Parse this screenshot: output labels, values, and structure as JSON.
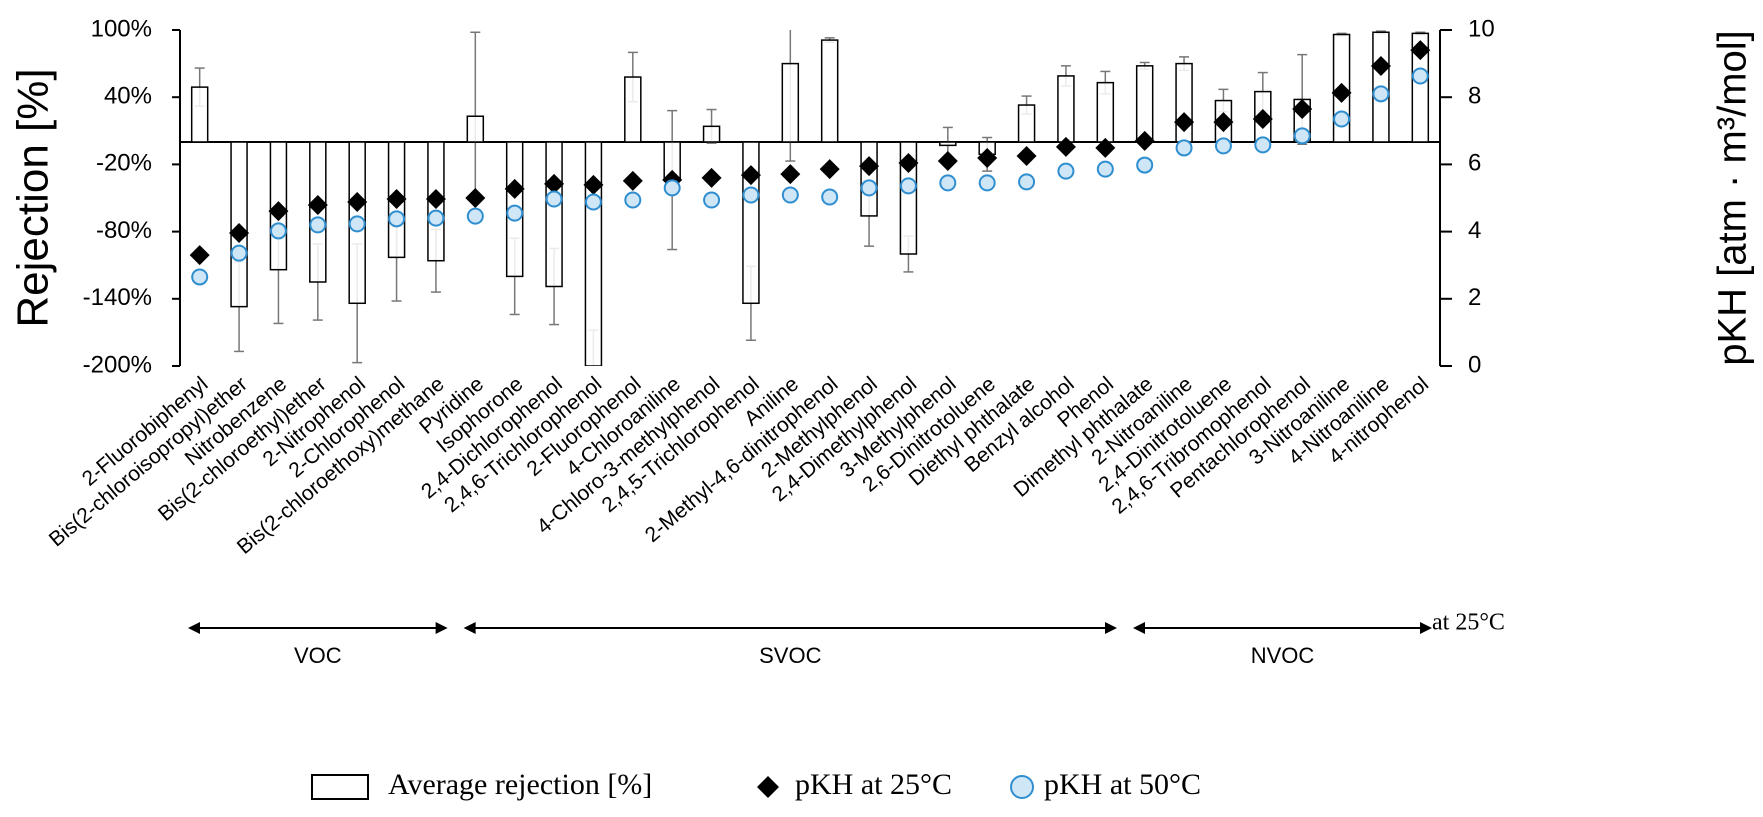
{
  "chart_data": {
    "type": "bar",
    "ylabel": "Rejection [%]",
    "y2label": "pKH [atm · m³/mol]",
    "categories": [
      "2-Fluorobiphenyl",
      "Bis(2-chloroisopropyl)ether",
      "Nitrobenzene",
      "Bis(2-chloroethyl)ether",
      "2-Nitrophenol",
      "2-Chlorophenol",
      "Bis(2-chloroethoxy)methane",
      "Pyridine",
      "Isophorone",
      "2,4-Dichlorophenol",
      "2,4,6-Trichlorophenol",
      "2-Fluorophenol",
      "4-Chloroaniline",
      "4-Chloro-3-methylphenol",
      "2,4,5-Trichlorophenol",
      "Aniline",
      "2-Methyl-4,6-dinitrophenol",
      "2-Methylphenol",
      "2,4-Dimethylphenol",
      "3-Methylphenol",
      "2,6-Dinitrotoluene",
      "Diethyl phthalate",
      "Benzyl alcohol",
      "Phenol",
      "Dimethyl phthalate",
      "2-Nitroaniline",
      "2,4-Dinitrotoluene",
      "2,4,6-Tribromophenol",
      "Pentachlorophenol",
      "3-Nitroaniline",
      "4-Nitroaniline",
      "4-nitrophenol"
    ],
    "series": [
      {
        "name": "Average rejection [%]",
        "type": "bar",
        "color": "#ffffff",
        "edge_color": "#000000",
        "error_color": "#777777",
        "values": [
          49,
          -147,
          -114,
          -125,
          -144,
          -103,
          -106,
          23,
          -120,
          -129,
          -200,
          58,
          -34,
          14,
          -144,
          70,
          91,
          -66,
          -100,
          -3,
          -11,
          33,
          59,
          53,
          68,
          70,
          37,
          45,
          38,
          96,
          98,
          97
        ],
        "errors": [
          17,
          40,
          48,
          34,
          53,
          39,
          28,
          75,
          34,
          34,
          32,
          22,
          62,
          15,
          33,
          87,
          2,
          27,
          16,
          16,
          15,
          8,
          9,
          10,
          3,
          6,
          10,
          17,
          40,
          1,
          1,
          1
        ]
      },
      {
        "name": "pKH at 25°C",
        "type": "scatter",
        "marker": "diamond",
        "axis": "y2",
        "color": "#000000",
        "values": [
          3.3,
          3.96,
          4.61,
          4.79,
          4.88,
          4.97,
          4.97,
          5.0,
          5.27,
          5.42,
          5.39,
          5.51,
          5.54,
          5.6,
          5.68,
          5.71,
          5.86,
          5.95,
          6.04,
          6.1,
          6.19,
          6.25,
          6.52,
          6.49,
          6.7,
          7.26,
          7.26,
          7.35,
          7.65,
          8.13,
          8.93,
          9.4
        ]
      },
      {
        "name": "pKH at 50°C",
        "type": "scatter",
        "marker": "circle",
        "axis": "y2",
        "color": "#cfe6f7",
        "edge_color": "#2f8ed0",
        "values": [
          2.65,
          3.36,
          4.02,
          4.2,
          4.23,
          4.38,
          4.4,
          4.46,
          4.55,
          4.97,
          4.88,
          4.94,
          5.3,
          4.94,
          5.09,
          5.09,
          5.03,
          5.3,
          5.36,
          5.45,
          5.45,
          5.48,
          5.8,
          5.86,
          5.98,
          6.49,
          6.55,
          6.58,
          6.85,
          7.35,
          8.1,
          8.63
        ]
      }
    ],
    "ylim": [
      -200,
      100
    ],
    "yticks": [
      {
        "value": -200,
        "label": "-200%"
      },
      {
        "value": -140,
        "label": "-140%"
      },
      {
        "value": -80,
        "label": "-80%"
      },
      {
        "value": -20,
        "label": "-20%"
      },
      {
        "value": 40,
        "label": "40%"
      },
      {
        "value": 100,
        "label": "100%"
      }
    ],
    "y2lim": [
      0,
      10
    ],
    "y2ticks": [
      0,
      2,
      4,
      6,
      8,
      10
    ],
    "groups": [
      "VOC",
      "SVOC",
      "NVOC"
    ],
    "annotation": "at 25°C",
    "legend": "bottom"
  }
}
